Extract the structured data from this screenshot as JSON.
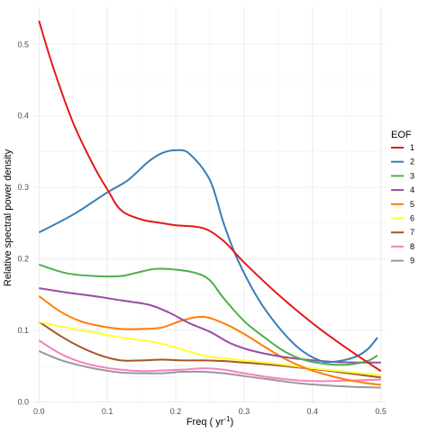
{
  "chart_data": {
    "type": "line",
    "title": "",
    "xlabel": "Freq ( yr",
    "xlabel_superscript": "-1",
    "xlabel_suffix": ")",
    "ylabel": "Relative  spectral  power  density",
    "xlim": [
      -0.007,
      0.507
    ],
    "ylim": [
      -0.002,
      0.552
    ],
    "x_ticks": [
      0.0,
      0.1,
      0.2,
      0.3,
      0.4,
      0.5
    ],
    "x_tick_labels": [
      "0.0",
      "0.1",
      "0.2",
      "0.3",
      "0.4",
      "0.5"
    ],
    "y_ticks": [
      0.0,
      0.1,
      0.2,
      0.3,
      0.4,
      0.5
    ],
    "y_tick_labels": [
      "0.0",
      "0.1",
      "0.2",
      "0.3",
      "0.4",
      "0.5"
    ],
    "grid": true,
    "legend": {
      "title": "EOF",
      "placement": "right"
    },
    "series": [
      {
        "name": "1",
        "color": "#e41a1c",
        "points": [
          [
            0.0,
            0.533
          ],
          [
            0.02,
            0.47
          ],
          [
            0.05,
            0.39
          ],
          [
            0.08,
            0.33
          ],
          [
            0.1,
            0.297
          ],
          [
            0.12,
            0.268
          ],
          [
            0.15,
            0.255
          ],
          [
            0.18,
            0.25
          ],
          [
            0.2,
            0.247
          ],
          [
            0.24,
            0.243
          ],
          [
            0.27,
            0.225
          ],
          [
            0.3,
            0.195
          ],
          [
            0.35,
            0.15
          ],
          [
            0.4,
            0.11
          ],
          [
            0.45,
            0.075
          ],
          [
            0.5,
            0.043
          ]
        ]
      },
      {
        "name": "2",
        "color": "#377eb8",
        "points": [
          [
            0.0,
            0.237
          ],
          [
            0.05,
            0.262
          ],
          [
            0.1,
            0.293
          ],
          [
            0.13,
            0.31
          ],
          [
            0.16,
            0.336
          ],
          [
            0.18,
            0.348
          ],
          [
            0.2,
            0.352
          ],
          [
            0.22,
            0.347
          ],
          [
            0.25,
            0.31
          ],
          [
            0.27,
            0.25
          ],
          [
            0.29,
            0.2
          ],
          [
            0.32,
            0.145
          ],
          [
            0.35,
            0.105
          ],
          [
            0.38,
            0.075
          ],
          [
            0.41,
            0.058
          ],
          [
            0.43,
            0.056
          ],
          [
            0.46,
            0.062
          ],
          [
            0.48,
            0.073
          ],
          [
            0.495,
            0.09
          ]
        ]
      },
      {
        "name": "3",
        "color": "#4daf4a",
        "points": [
          [
            0.0,
            0.192
          ],
          [
            0.04,
            0.18
          ],
          [
            0.08,
            0.176
          ],
          [
            0.12,
            0.176
          ],
          [
            0.14,
            0.18
          ],
          [
            0.17,
            0.186
          ],
          [
            0.2,
            0.185
          ],
          [
            0.23,
            0.18
          ],
          [
            0.25,
            0.17
          ],
          [
            0.27,
            0.145
          ],
          [
            0.3,
            0.113
          ],
          [
            0.33,
            0.09
          ],
          [
            0.36,
            0.07
          ],
          [
            0.39,
            0.058
          ],
          [
            0.42,
            0.053
          ],
          [
            0.45,
            0.052
          ],
          [
            0.48,
            0.057
          ],
          [
            0.495,
            0.065
          ]
        ]
      },
      {
        "name": "4",
        "color": "#984ea3",
        "points": [
          [
            0.0,
            0.159
          ],
          [
            0.04,
            0.153
          ],
          [
            0.08,
            0.148
          ],
          [
            0.12,
            0.142
          ],
          [
            0.16,
            0.136
          ],
          [
            0.19,
            0.125
          ],
          [
            0.22,
            0.11
          ],
          [
            0.25,
            0.098
          ],
          [
            0.28,
            0.082
          ],
          [
            0.31,
            0.072
          ],
          [
            0.35,
            0.064
          ],
          [
            0.39,
            0.059
          ],
          [
            0.43,
            0.056
          ],
          [
            0.47,
            0.055
          ],
          [
            0.5,
            0.055
          ]
        ]
      },
      {
        "name": "5",
        "color": "#ff7f00",
        "points": [
          [
            0.0,
            0.148
          ],
          [
            0.03,
            0.127
          ],
          [
            0.06,
            0.113
          ],
          [
            0.09,
            0.106
          ],
          [
            0.12,
            0.102
          ],
          [
            0.15,
            0.102
          ],
          [
            0.18,
            0.104
          ],
          [
            0.21,
            0.114
          ],
          [
            0.24,
            0.119
          ],
          [
            0.27,
            0.11
          ],
          [
            0.3,
            0.095
          ],
          [
            0.33,
            0.077
          ],
          [
            0.36,
            0.06
          ],
          [
            0.39,
            0.047
          ],
          [
            0.42,
            0.038
          ],
          [
            0.45,
            0.031
          ],
          [
            0.48,
            0.026
          ],
          [
            0.5,
            0.024
          ]
        ]
      },
      {
        "name": "6",
        "color": "#ffff33",
        "points": [
          [
            0.0,
            0.112
          ],
          [
            0.04,
            0.104
          ],
          [
            0.08,
            0.097
          ],
          [
            0.12,
            0.09
          ],
          [
            0.16,
            0.085
          ],
          [
            0.19,
            0.079
          ],
          [
            0.22,
            0.07
          ],
          [
            0.25,
            0.063
          ],
          [
            0.28,
            0.06
          ],
          [
            0.31,
            0.057
          ],
          [
            0.35,
            0.053
          ],
          [
            0.39,
            0.048
          ],
          [
            0.43,
            0.044
          ],
          [
            0.47,
            0.04
          ],
          [
            0.5,
            0.037
          ]
        ]
      },
      {
        "name": "7",
        "color": "#a65628",
        "points": [
          [
            0.0,
            0.112
          ],
          [
            0.03,
            0.093
          ],
          [
            0.06,
            0.077
          ],
          [
            0.09,
            0.065
          ],
          [
            0.12,
            0.058
          ],
          [
            0.15,
            0.058
          ],
          [
            0.18,
            0.059
          ],
          [
            0.21,
            0.058
          ],
          [
            0.24,
            0.058
          ],
          [
            0.27,
            0.057
          ],
          [
            0.3,
            0.055
          ],
          [
            0.34,
            0.052
          ],
          [
            0.38,
            0.048
          ],
          [
            0.42,
            0.044
          ],
          [
            0.46,
            0.039
          ],
          [
            0.5,
            0.034
          ]
        ]
      },
      {
        "name": "8",
        "color": "#f781bf",
        "points": [
          [
            0.0,
            0.086
          ],
          [
            0.03,
            0.068
          ],
          [
            0.06,
            0.056
          ],
          [
            0.09,
            0.049
          ],
          [
            0.12,
            0.045
          ],
          [
            0.15,
            0.043
          ],
          [
            0.18,
            0.044
          ],
          [
            0.21,
            0.045
          ],
          [
            0.24,
            0.047
          ],
          [
            0.27,
            0.045
          ],
          [
            0.3,
            0.04
          ],
          [
            0.34,
            0.034
          ],
          [
            0.38,
            0.03
          ],
          [
            0.42,
            0.029
          ],
          [
            0.46,
            0.03
          ],
          [
            0.5,
            0.031
          ]
        ]
      },
      {
        "name": "9",
        "color": "#999999",
        "points": [
          [
            0.0,
            0.071
          ],
          [
            0.03,
            0.059
          ],
          [
            0.06,
            0.051
          ],
          [
            0.09,
            0.045
          ],
          [
            0.12,
            0.041
          ],
          [
            0.15,
            0.04
          ],
          [
            0.18,
            0.04
          ],
          [
            0.21,
            0.042
          ],
          [
            0.24,
            0.042
          ],
          [
            0.27,
            0.04
          ],
          [
            0.3,
            0.036
          ],
          [
            0.34,
            0.031
          ],
          [
            0.38,
            0.026
          ],
          [
            0.42,
            0.023
          ],
          [
            0.46,
            0.021
          ],
          [
            0.5,
            0.02
          ]
        ]
      }
    ]
  }
}
